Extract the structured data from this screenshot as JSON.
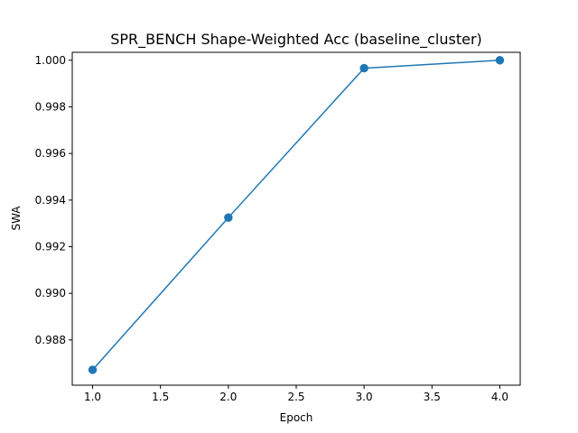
{
  "chart_data": {
    "type": "line",
    "title": "SPR_BENCH Shape-Weighted Acc (baseline_cluster)",
    "xlabel": "Epoch",
    "ylabel": "SWA",
    "x": [
      1.0,
      2.0,
      3.0,
      4.0
    ],
    "series": [
      {
        "values": [
          0.98672,
          0.99325,
          0.99966,
          1.0
        ],
        "color": "#1f77b4",
        "marker": "circle"
      }
    ],
    "xlim": [
      0.85,
      4.15
    ],
    "ylim": [
      0.98606,
      1.00034
    ],
    "xticks": [
      1.0,
      1.5,
      2.0,
      2.5,
      3.0,
      3.5,
      4.0
    ],
    "xtick_labels": [
      "1.0",
      "1.5",
      "2.0",
      "2.5",
      "3.0",
      "3.5",
      "4.0"
    ],
    "yticks": [
      0.988,
      0.99,
      0.992,
      0.994,
      0.996,
      0.998,
      1.0
    ],
    "ytick_labels": [
      "0.988",
      "0.990",
      "0.992",
      "0.994",
      "0.996",
      "0.998",
      "1.000"
    ],
    "grid": false,
    "legend": "none"
  }
}
